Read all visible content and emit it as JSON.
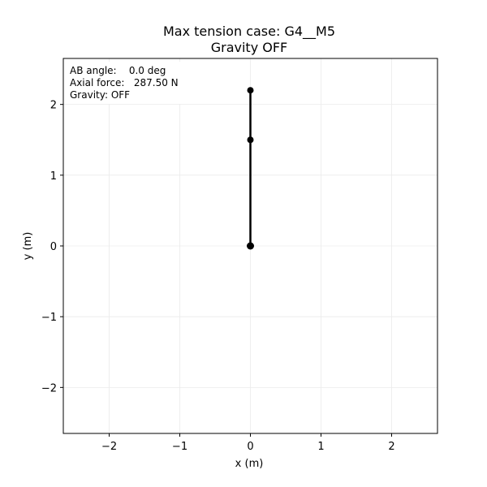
{
  "chart_data": {
    "type": "line",
    "title_line1": "Max tension case: G4__M5",
    "title_line2": "Gravity OFF",
    "xlabel": "x (m)",
    "ylabel": "y (m)",
    "xlim": [
      -2.65,
      2.65
    ],
    "ylim": [
      -2.65,
      2.65
    ],
    "xticks": [
      -2,
      -1,
      0,
      1,
      2
    ],
    "yticks": [
      -2,
      -1,
      0,
      1,
      2
    ],
    "xtick_labels": [
      "−2",
      "−1",
      "0",
      "1",
      "2"
    ],
    "ytick_labels": [
      "−2",
      "−1",
      "0",
      "1",
      "2"
    ],
    "grid": true,
    "series": [
      {
        "points": [
          [
            0,
            0
          ],
          [
            0,
            1.5
          ],
          [
            0,
            2.2
          ]
        ],
        "color": "#000000"
      }
    ],
    "info_box": {
      "lines": [
        "AB angle:    0.0 deg",
        "Axial force:   287.50 N",
        "Gravity: OFF"
      ],
      "placement": "top-left"
    }
  }
}
